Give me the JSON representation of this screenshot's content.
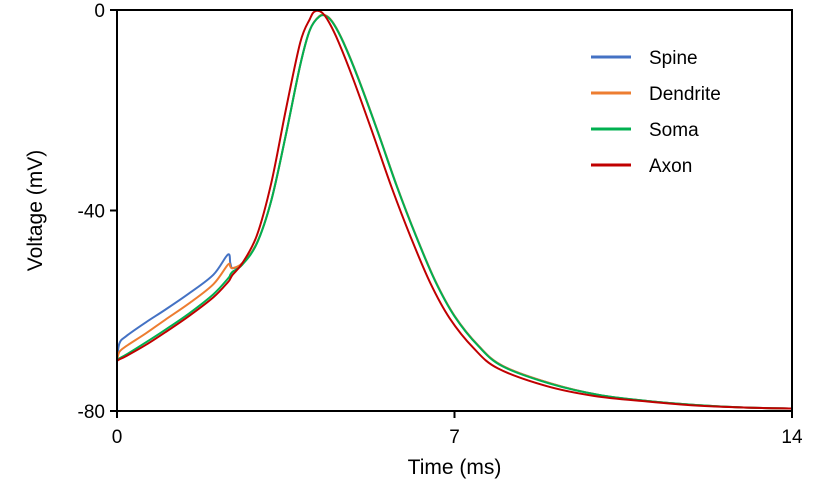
{
  "chart_data": {
    "type": "line",
    "title": "",
    "xlabel": "Time (ms)",
    "ylabel": "Voltage (mV)",
    "xlim": [
      0,
      14
    ],
    "ylim": [
      -80,
      0
    ],
    "xticks": [
      0,
      7,
      14
    ],
    "yticks": [
      0,
      -40,
      -80
    ],
    "grid": false,
    "legend_position": "top-right",
    "series": [
      {
        "name": "Spine",
        "color": "#4472c4",
        "x": [
          0.0,
          0.05,
          0.2,
          0.6,
          1.0,
          1.5,
          2.0,
          2.3,
          2.35,
          2.4,
          2.6,
          2.9,
          3.2,
          3.5,
          3.8,
          4.0,
          4.2,
          4.35,
          4.5,
          4.7,
          5.0,
          5.4,
          5.8,
          6.2,
          6.6,
          7.0,
          7.5,
          8.0,
          9.0,
          10.0,
          11.0,
          12.0,
          13.0,
          14.0
        ],
        "values": [
          -70,
          -66.5,
          -65,
          -62.3,
          -59.8,
          -56.5,
          -52.8,
          -48.8,
          -50.5,
          -51.5,
          -50.5,
          -46.5,
          -38,
          -25,
          -11,
          -4,
          -1.2,
          -1.2,
          -2.8,
          -6.5,
          -13.5,
          -24,
          -35,
          -45,
          -54,
          -61,
          -67,
          -71,
          -74.5,
          -76.8,
          -78,
          -78.8,
          -79.3,
          -79.5
        ]
      },
      {
        "name": "Dendrite",
        "color": "#ed7d31",
        "x": [
          0.0,
          0.05,
          0.2,
          0.6,
          1.0,
          1.5,
          2.0,
          2.3,
          2.35,
          2.4,
          2.6,
          2.9,
          3.2,
          3.5,
          3.8,
          4.0,
          4.2,
          4.35,
          4.5,
          4.7,
          5.0,
          5.4,
          5.8,
          6.2,
          6.6,
          7.0,
          7.5,
          8.0,
          9.0,
          10.0,
          11.0,
          12.0,
          13.0,
          14.0
        ],
        "values": [
          -70,
          -68.2,
          -67,
          -64.5,
          -61.8,
          -58.5,
          -54.7,
          -50.8,
          -51.2,
          -51.5,
          -50.5,
          -46.5,
          -38,
          -25,
          -11,
          -4,
          -1.2,
          -1.2,
          -2.8,
          -6.5,
          -13.5,
          -24,
          -35,
          -45,
          -54,
          -61,
          -67,
          -71,
          -74.5,
          -76.8,
          -78,
          -78.8,
          -79.3,
          -79.5
        ]
      },
      {
        "name": "Soma",
        "color": "#00b050",
        "x": [
          0.0,
          0.05,
          0.2,
          0.6,
          1.0,
          1.5,
          2.0,
          2.3,
          2.35,
          2.4,
          2.6,
          2.9,
          3.2,
          3.5,
          3.8,
          4.0,
          4.2,
          4.35,
          4.5,
          4.7,
          5.0,
          5.4,
          5.8,
          6.2,
          6.6,
          7.0,
          7.5,
          8.0,
          9.0,
          10.0,
          11.0,
          12.0,
          13.0,
          14.0
        ],
        "values": [
          -70,
          -69.5,
          -68.7,
          -66.3,
          -63.8,
          -60.5,
          -56.7,
          -53.6,
          -52.8,
          -52.2,
          -50.8,
          -46.6,
          -38,
          -25,
          -11,
          -4,
          -1.3,
          -1.3,
          -2.9,
          -6.6,
          -13.6,
          -24.1,
          -35.1,
          -45.1,
          -54.1,
          -61.1,
          -67.1,
          -71.1,
          -74.6,
          -76.8,
          -78,
          -78.8,
          -79.3,
          -79.5
        ]
      },
      {
        "name": "Axon",
        "color": "#c00000",
        "x": [
          0.0,
          0.05,
          0.2,
          0.6,
          1.0,
          1.5,
          2.0,
          2.3,
          2.35,
          2.4,
          2.6,
          2.9,
          3.2,
          3.5,
          3.8,
          4.0,
          4.1,
          4.25,
          4.4,
          4.6,
          4.9,
          5.3,
          5.7,
          6.1,
          6.5,
          6.9,
          7.4,
          7.9,
          8.9,
          9.9,
          11.0,
          12.0,
          13.0,
          14.0
        ],
        "values": [
          -70,
          -69.7,
          -69,
          -66.8,
          -64.3,
          -61,
          -57.3,
          -54.3,
          -53.6,
          -52.8,
          -50.5,
          -45,
          -34.5,
          -20,
          -6.5,
          -1.8,
          -0.3,
          -0.5,
          -2.5,
          -6.5,
          -13.8,
          -24.5,
          -35.5,
          -45.5,
          -54.5,
          -61.5,
          -67.5,
          -71.5,
          -75,
          -77,
          -78.1,
          -78.9,
          -79.3,
          -79.5
        ]
      }
    ]
  }
}
